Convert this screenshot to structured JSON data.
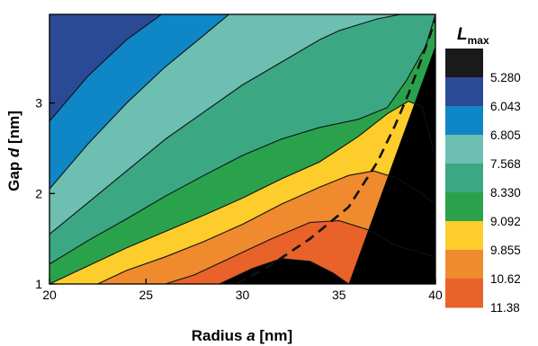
{
  "chart_data": {
    "type": "contour",
    "xlabel_prefix": "Radius ",
    "xlabel_var": "a",
    "xlabel_suffix": " [nm]",
    "ylabel_prefix": "Gap ",
    "ylabel_var": "d",
    "ylabel_suffix": " [nm]",
    "xlim": [
      20,
      40
    ],
    "ylim": [
      1,
      3.98
    ],
    "x_ticks": [
      20,
      25,
      30,
      35,
      40
    ],
    "y_ticks": [
      1,
      2,
      3
    ],
    "colorbar": {
      "title_main": "L",
      "title_sub": "max",
      "tick_labels": [
        "5.280",
        "6.043",
        "6.805",
        "7.568",
        "8.330",
        "9.092",
        "9.855",
        "10.62",
        "11.38"
      ],
      "colors": [
        "#1a1a1a",
        "#2b4a95",
        "#0f86c6",
        "#6cbfb1",
        "#3ba883",
        "#2aa24c",
        "#fdcd2b",
        "#ef8a2f",
        "#e8622a"
      ]
    },
    "contour_lines": [
      {
        "name": "5.280",
        "points": [
          [
            20,
            2.8
          ],
          [
            22,
            3.3
          ],
          [
            24,
            3.7
          ],
          [
            25.8,
            3.98
          ]
        ]
      },
      {
        "name": "6.043",
        "points": [
          [
            20,
            2.05
          ],
          [
            22,
            2.55
          ],
          [
            24,
            3.0
          ],
          [
            26,
            3.4
          ],
          [
            28,
            3.75
          ],
          [
            29.3,
            3.98
          ]
        ]
      },
      {
        "name": "6.805",
        "points": [
          [
            20,
            1.55
          ],
          [
            22,
            1.9
          ],
          [
            24,
            2.25
          ],
          [
            26,
            2.6
          ],
          [
            28,
            2.9
          ],
          [
            30,
            3.2
          ],
          [
            32,
            3.45
          ],
          [
            34,
            3.7
          ],
          [
            35,
            3.8
          ],
          [
            37,
            3.93
          ],
          [
            38.2,
            3.98
          ]
        ]
      },
      {
        "name": "7.568",
        "points": [
          [
            20,
            1.22
          ],
          [
            22,
            1.48
          ],
          [
            24,
            1.72
          ],
          [
            26,
            1.97
          ],
          [
            28,
            2.2
          ],
          [
            30,
            2.42
          ],
          [
            32,
            2.6
          ],
          [
            34,
            2.73
          ],
          [
            36,
            2.82
          ],
          [
            37.5,
            2.95
          ],
          [
            38.5,
            3.25
          ],
          [
            39.5,
            3.63
          ],
          [
            40,
            3.98
          ]
        ]
      },
      {
        "name": "8.330",
        "points": [
          [
            20,
            1.0
          ],
          [
            22,
            1.2
          ],
          [
            24,
            1.4
          ],
          [
            26,
            1.58
          ],
          [
            28,
            1.76
          ],
          [
            30,
            1.95
          ],
          [
            32,
            2.16
          ],
          [
            34,
            2.35
          ],
          [
            36,
            2.63
          ],
          [
            37.5,
            2.88
          ],
          [
            38.6,
            3.02
          ],
          [
            39.3,
            2.96
          ],
          [
            40,
            2.4
          ]
        ]
      },
      {
        "name": "9.092",
        "points": [
          [
            22.5,
            1.0
          ],
          [
            24,
            1.15
          ],
          [
            26,
            1.3
          ],
          [
            28,
            1.47
          ],
          [
            30,
            1.66
          ],
          [
            32,
            1.88
          ],
          [
            34,
            2.07
          ],
          [
            35.5,
            2.2
          ],
          [
            36.8,
            2.25
          ],
          [
            38,
            2.17
          ],
          [
            39.3,
            2.0
          ],
          [
            40,
            1.88
          ]
        ]
      },
      {
        "name": "9.855",
        "points": [
          [
            26,
            1.0
          ],
          [
            27.5,
            1.1
          ],
          [
            29.5,
            1.3
          ],
          [
            31.5,
            1.5
          ],
          [
            33.5,
            1.68
          ],
          [
            35,
            1.7
          ],
          [
            36.5,
            1.6
          ],
          [
            38,
            1.42
          ],
          [
            40,
            1.3
          ]
        ]
      },
      {
        "name": "10.62",
        "points": [
          [
            28.8,
            1.0
          ],
          [
            30.5,
            1.17
          ],
          [
            32,
            1.28
          ],
          [
            33.5,
            1.25
          ],
          [
            34.7,
            1.12
          ],
          [
            35.5,
            1.0
          ]
        ]
      }
    ],
    "dashed_curve": {
      "points": [
        [
          29.7,
          1.0
        ],
        [
          31.4,
          1.2
        ],
        [
          33.5,
          1.5
        ],
        [
          35.5,
          1.85
        ],
        [
          37,
          2.35
        ],
        [
          37.9,
          2.75
        ],
        [
          38.6,
          3.1
        ],
        [
          39.3,
          3.5
        ],
        [
          39.8,
          3.8
        ],
        [
          40,
          3.92
        ]
      ]
    }
  }
}
